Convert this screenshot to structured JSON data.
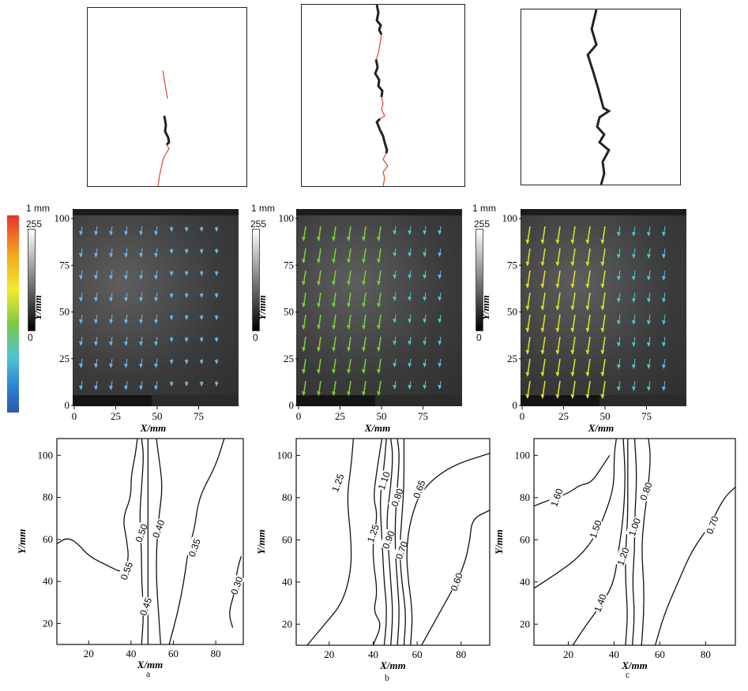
{
  "figure": {
    "panels": [
      {
        "id": "a",
        "sublabel": "a",
        "crack": {
          "red": [
            [
              0.47,
              0.34
            ],
            [
              0.5,
              0.5
            ]
          ],
          "black": [
            [
              0.45,
              0.6
            ],
            [
              0.47,
              0.72
            ],
            [
              0.47,
              0.8
            ]
          ],
          "red2": [
            [
              0.47,
              0.8
            ],
            [
              0.44,
              0.86
            ],
            [
              0.42,
              0.93
            ],
            [
              0.4,
              1.0
            ]
          ]
        },
        "vector_color": "#6fb6e0",
        "vector_len": 0.6,
        "contours": [
          "0.55",
          "0.50",
          "0.45",
          "0.40",
          "0.35",
          "0.30"
        ]
      },
      {
        "id": "b",
        "sublabel": "b",
        "vector_color": "#7acb34",
        "vector_len": 1.0,
        "contours": [
          "1.25",
          "1.25",
          "1.10",
          "0.90",
          "0.80",
          "0.70",
          "0.65",
          "0.60"
        ]
      },
      {
        "id": "c",
        "sublabel": "c",
        "vector_color": "#d6df2a",
        "vector_len": 1.2,
        "contours": [
          "1.60",
          "1.50",
          "1.40",
          "1.20",
          "1.00",
          "0.80",
          "0.70"
        ]
      }
    ]
  },
  "scale_labels": {
    "value": "1 mm"
  },
  "colorbar": {
    "max": "255",
    "min": "0",
    "colors": [
      "#e8322b",
      "#f5a623",
      "#f2ea2e",
      "#7ac943",
      "#4fc3d4",
      "#2a7fd0",
      "#2b5aa8"
    ]
  },
  "gray_bar": {
    "max": "255",
    "min": "0"
  },
  "mid_axes": {
    "xlabel": "X/mm",
    "ylabel": "Y/mm",
    "xticks": [
      "0",
      "25",
      "50",
      "75"
    ],
    "yticks": [
      "0",
      "25",
      "50",
      "75",
      "100"
    ]
  },
  "bot_axes": {
    "xlabel": "X/mm",
    "ylabel": "Y/mm",
    "xticks": [
      "20",
      "40",
      "60",
      "80"
    ],
    "yticks": [
      "20",
      "40",
      "60",
      "80",
      "100"
    ]
  },
  "chart_data": [
    {
      "type": "contour",
      "panel": "a",
      "xlabel": "X/mm",
      "ylabel": "Y/mm",
      "xlim": [
        5,
        93
      ],
      "ylim": [
        10,
        108
      ],
      "levels": [
        0.55,
        0.5,
        0.45,
        0.4,
        0.35,
        0.3
      ]
    },
    {
      "type": "contour",
      "panel": "b",
      "xlabel": "X/mm",
      "ylabel": "Y/mm",
      "xlim": [
        5,
        93
      ],
      "ylim": [
        10,
        108
      ],
      "levels": [
        1.25,
        1.1,
        0.9,
        0.8,
        0.7,
        0.65,
        0.6
      ]
    },
    {
      "type": "contour",
      "panel": "c",
      "xlabel": "X/mm",
      "ylabel": "Y/mm",
      "xlim": [
        5,
        93
      ],
      "ylim": [
        10,
        108
      ],
      "levels": [
        1.6,
        1.5,
        1.4,
        1.2,
        1.0,
        0.8,
        0.7
      ]
    }
  ]
}
